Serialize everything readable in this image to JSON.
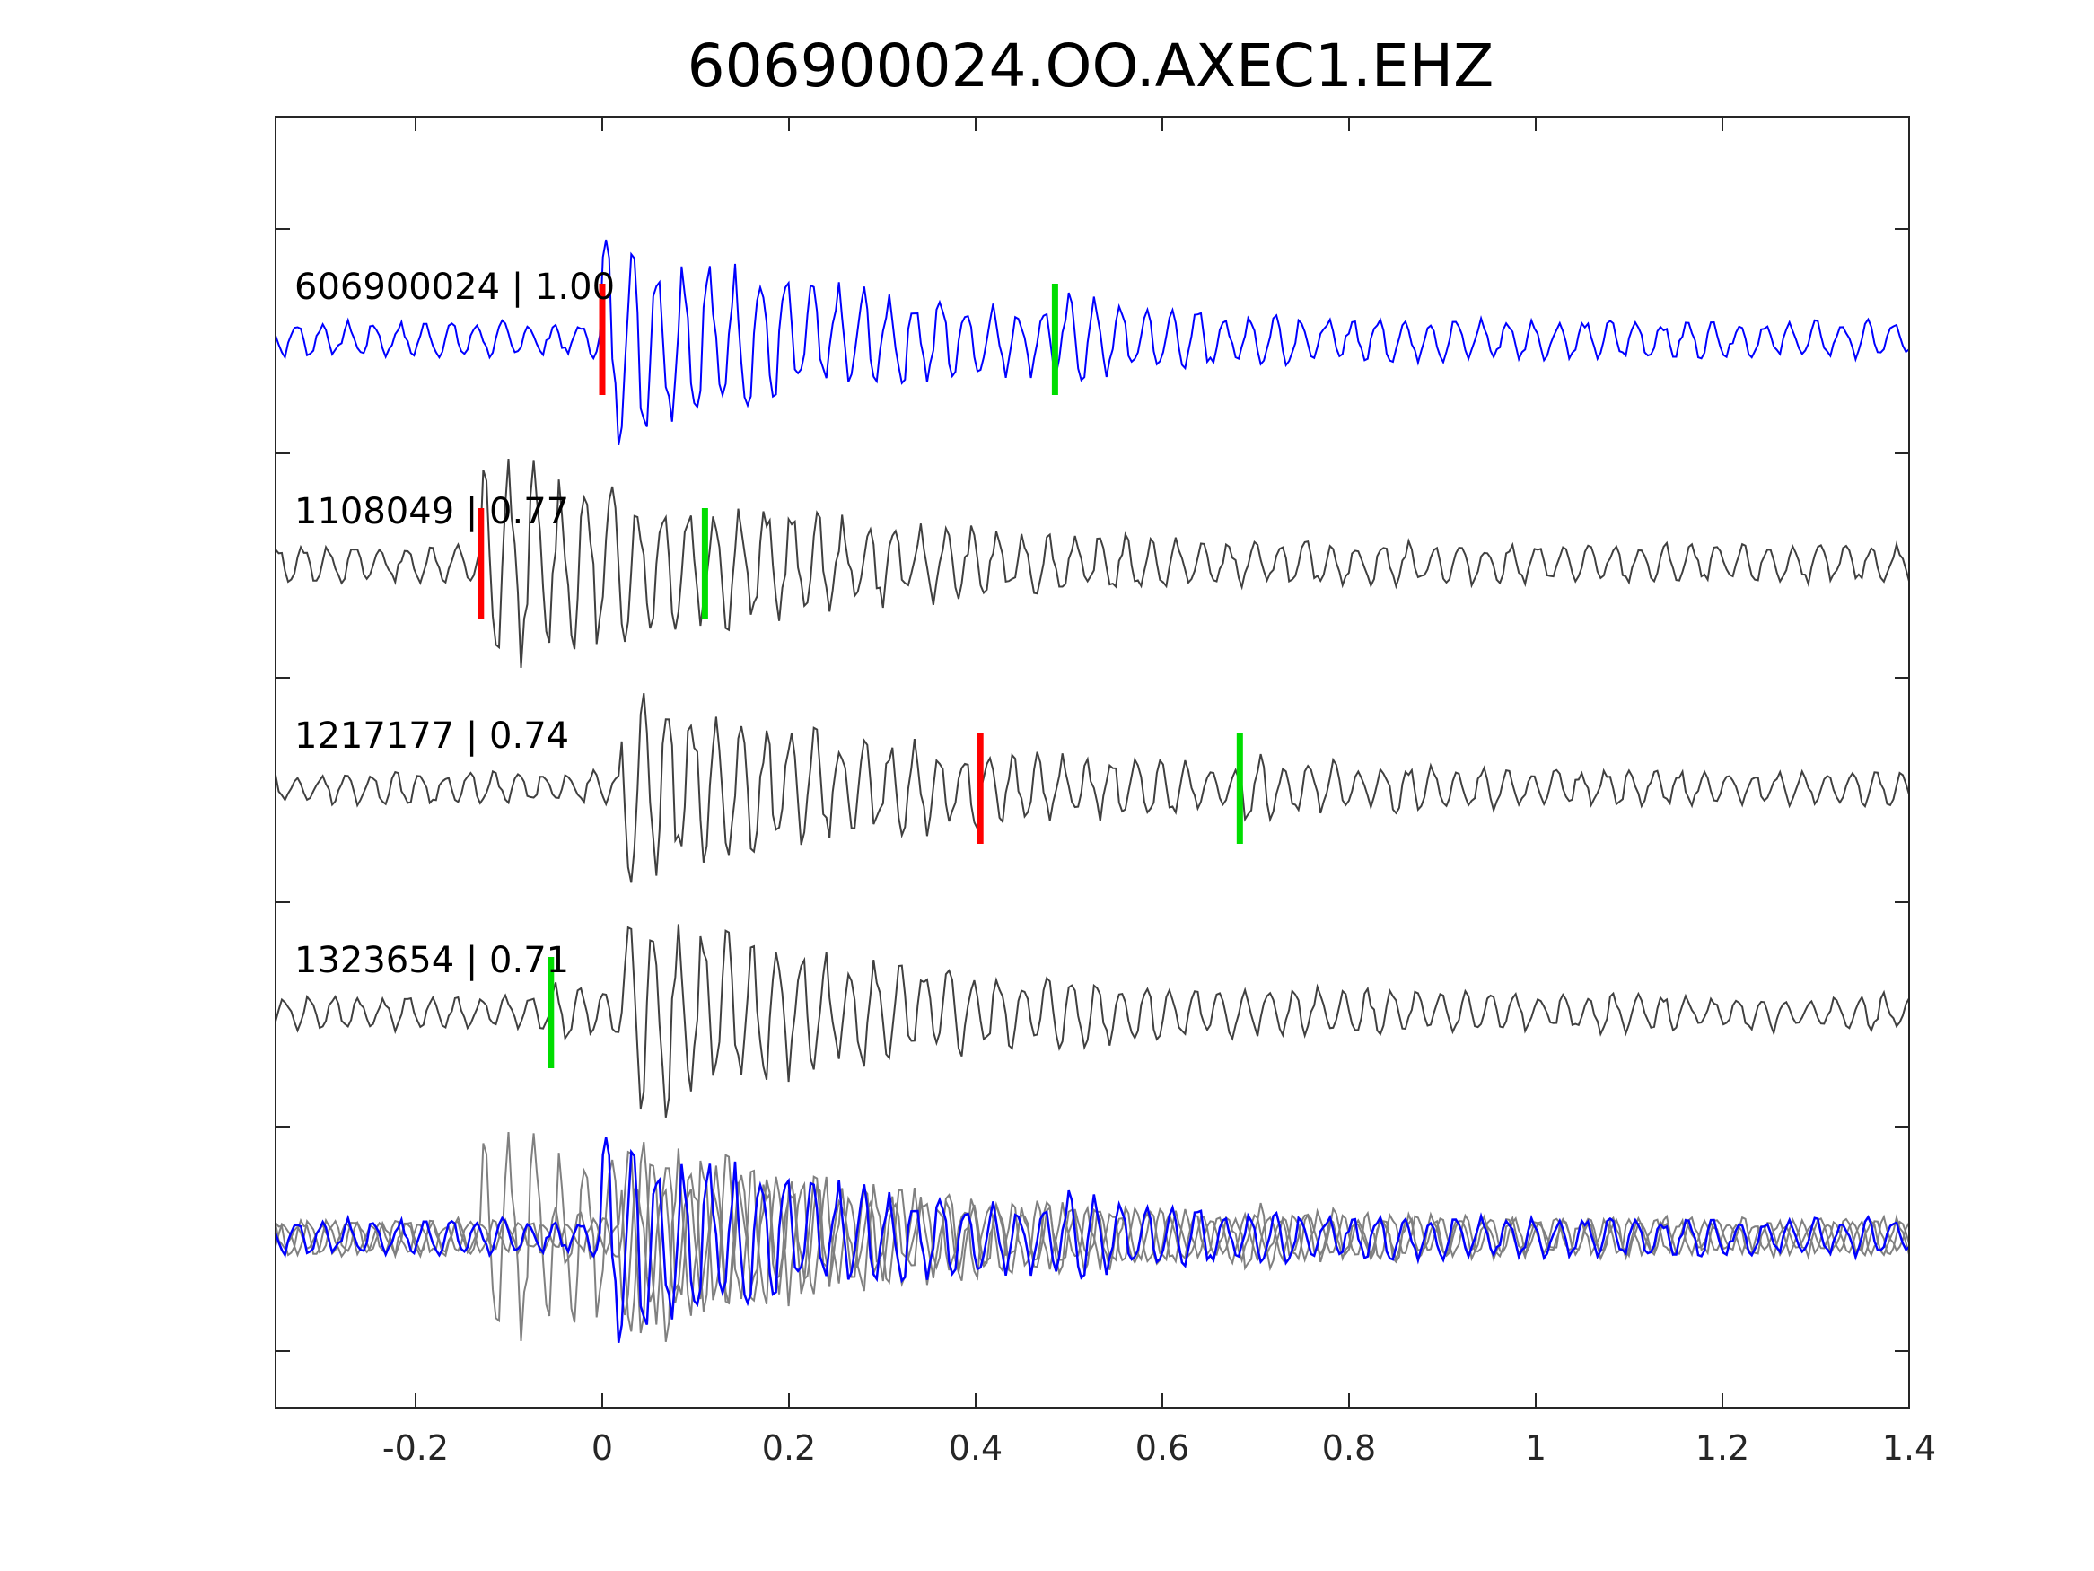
{
  "chart_data": {
    "type": "line",
    "title": "606900024.OO.AXEC1.EHZ",
    "xlabel": "",
    "ylabel": "",
    "xlim": [
      -0.35,
      1.4
    ],
    "xticks": [
      -0.2,
      0,
      0.2,
      0.4,
      0.6,
      0.8,
      1,
      1.2,
      1.4
    ],
    "xtick_labels": [
      "-0.2",
      "0",
      "0.2",
      "0.4",
      "0.6",
      "0.8",
      "1",
      "1.2",
      "1.4"
    ],
    "grid": false,
    "legend": "none",
    "colors": {
      "reference": "#0000ff",
      "trace": "#404040",
      "overlay": "#808080",
      "p_pick": "#ff0000",
      "s_pick": "#00dd00",
      "axis": "#262626"
    },
    "traces": [
      {
        "label": "606900024 | 1.00",
        "color": "reference",
        "p_pick": 0.0,
        "s_pick": 0.485,
        "seed": 7,
        "onset": 0.0,
        "amp": 1.0
      },
      {
        "label": "1108049 | 0.77",
        "color": "trace",
        "p_pick": -0.13,
        "s_pick": 0.11,
        "seed": 13,
        "onset": -0.13,
        "amp": 1.05
      },
      {
        "label": "1217177 | 0.74",
        "color": "trace",
        "p_pick": 0.405,
        "s_pick": 0.683,
        "seed": 29,
        "onset": 0.02,
        "amp": 0.95
      },
      {
        "label": "1323654 | 0.71",
        "color": "trace",
        "p_pick": null,
        "s_pick": -0.055,
        "seed": 41,
        "onset": 0.02,
        "amp": 1.0
      }
    ]
  }
}
